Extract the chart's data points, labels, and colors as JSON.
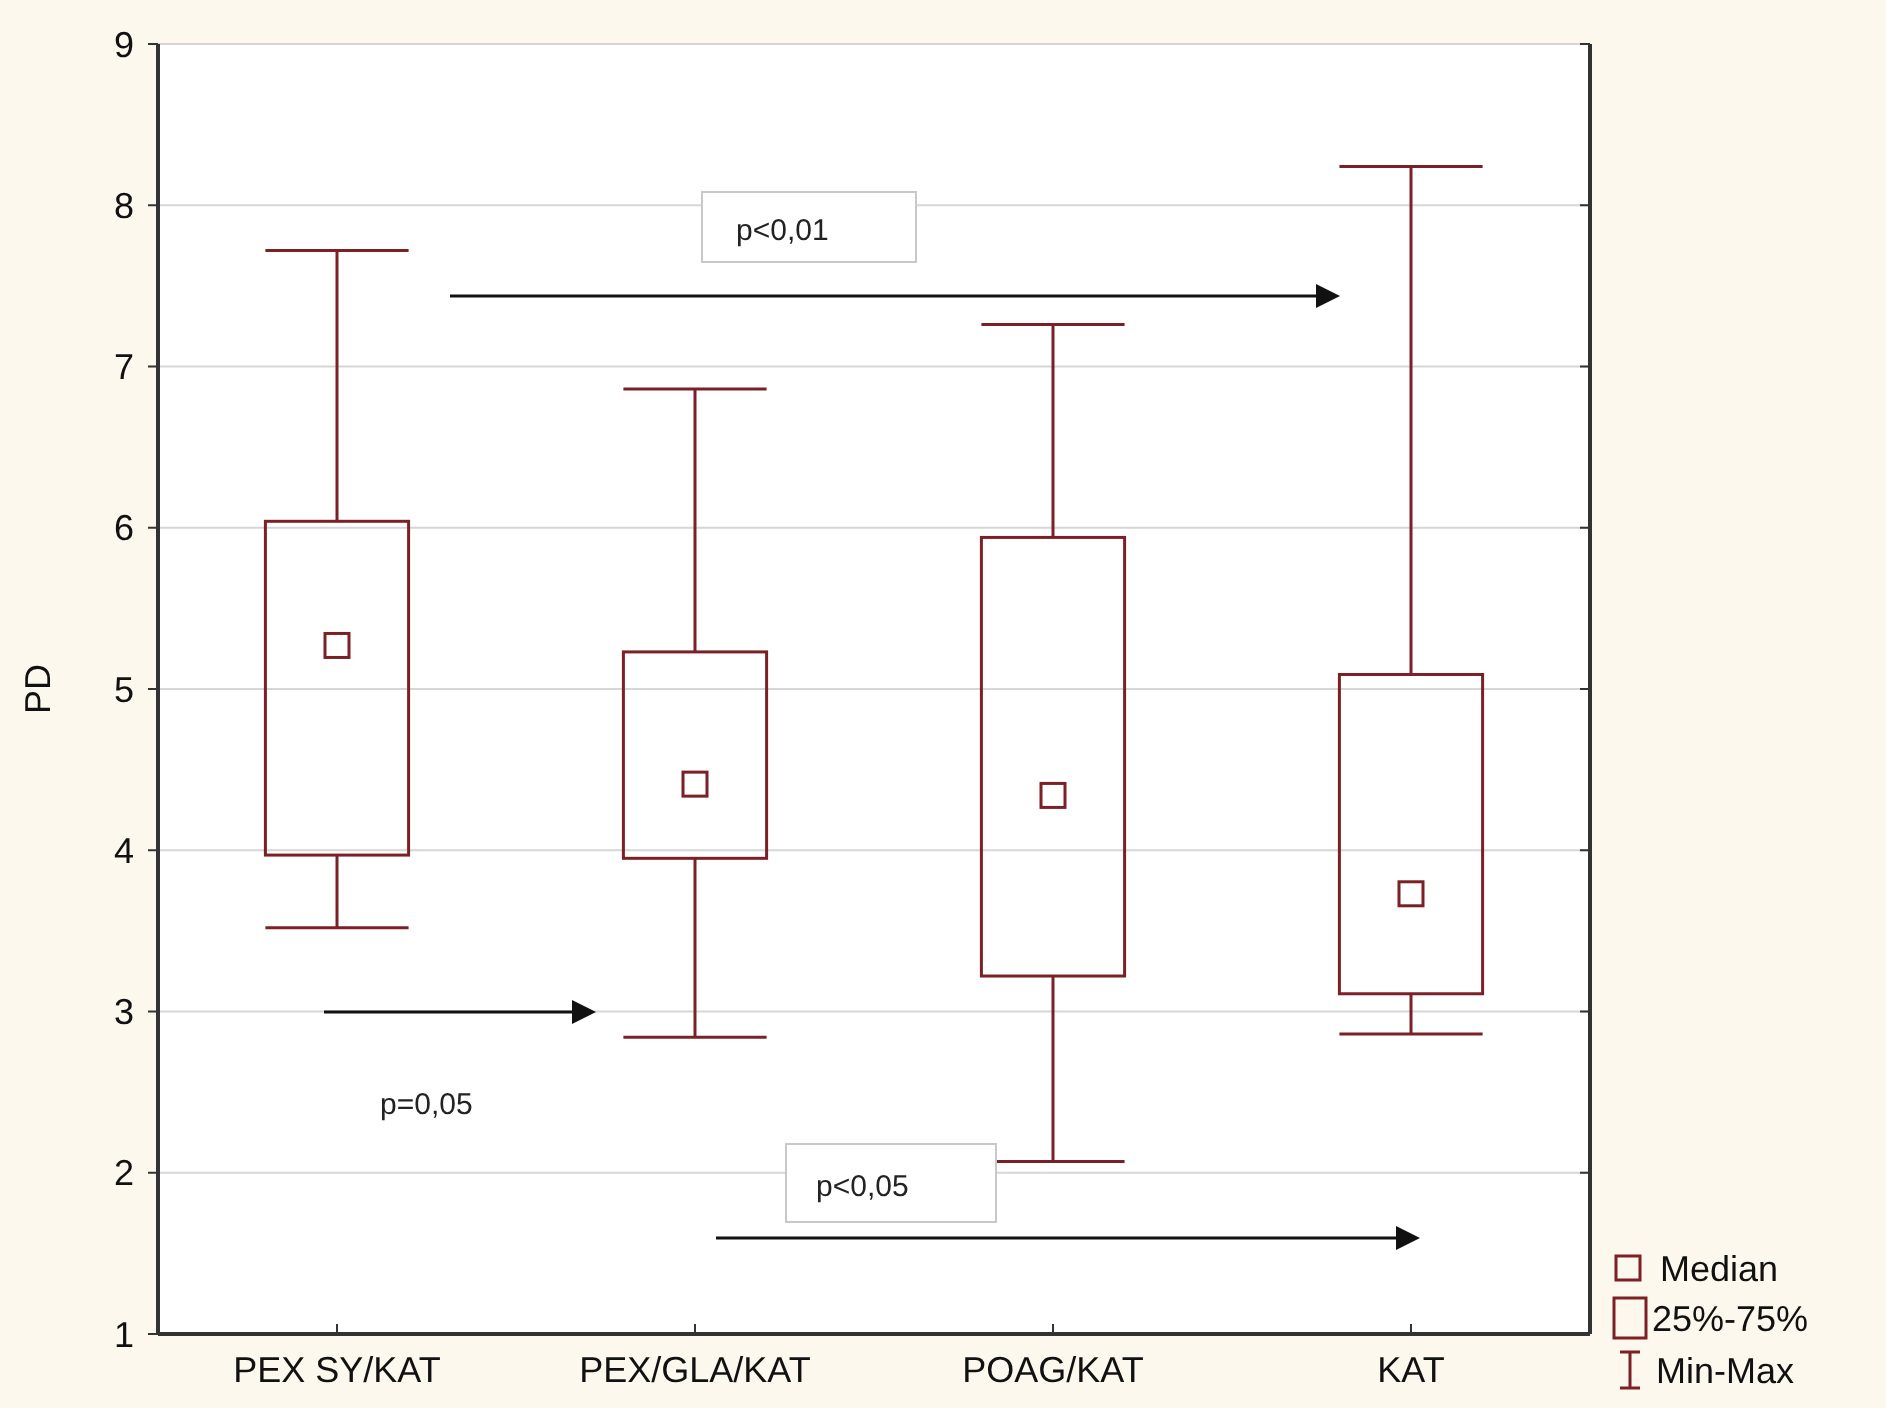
{
  "chart_data": {
    "type": "box",
    "ylabel": "PD",
    "categories": [
      "PEX SY/KAT",
      "PEX/GLA/KAT",
      "POAG/KAT",
      "KAT"
    ],
    "boxes": [
      {
        "low": 3.52,
        "q1": 3.97,
        "median": 5.27,
        "q3": 6.04,
        "high": 7.72
      },
      {
        "low": 2.84,
        "q1": 3.95,
        "median": 4.41,
        "q3": 5.23,
        "high": 6.86
      },
      {
        "low": 2.07,
        "q1": 3.22,
        "median": 4.34,
        "q3": 5.94,
        "high": 7.26
      },
      {
        "low": 2.86,
        "q1": 3.11,
        "median": 3.73,
        "q3": 5.09,
        "high": 8.24
      }
    ],
    "color": "#7b2126",
    "ylim": [
      1,
      9
    ],
    "yticks": [
      1,
      2,
      3,
      4,
      5,
      6,
      7,
      8,
      9
    ],
    "grid": "y",
    "annotations": [
      "p<0,01",
      "p=0,05",
      "p<0,05",
      "Median",
      "25%-75%",
      "Min-Max"
    ]
  }
}
